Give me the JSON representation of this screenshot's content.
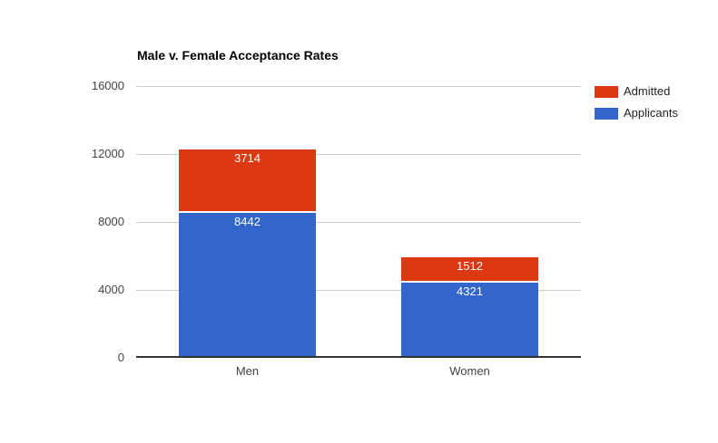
{
  "title": "Male v. Female Acceptance Rates",
  "chart_data": {
    "type": "bar",
    "stacked": true,
    "title": "Male v. Female Acceptance Rates",
    "categories": [
      "Men",
      "Women"
    ],
    "series": [
      {
        "name": "Admitted",
        "color": "#dc3912",
        "values": [
          3714,
          1512
        ]
      },
      {
        "name": "Applicants",
        "color": "#3366cc",
        "values": [
          8442,
          4321
        ]
      }
    ],
    "stack_order_bottom_to_top": [
      "Applicants",
      "Admitted"
    ],
    "bar_value_labels": true,
    "bar_label_color": "#ffffff",
    "xlabel": "",
    "ylabel": "",
    "ylim": [
      0,
      16000
    ],
    "yticks": [
      0,
      4000,
      8000,
      12000,
      16000
    ],
    "grid": true,
    "legend_position": "right"
  },
  "colors": {
    "background": "#ffffff",
    "title_text": "#000000",
    "axis_label_text": "#444444",
    "legend_text": "#222222",
    "gridline": "#cccccc",
    "baseline": "#333333",
    "admitted": "#dc3912",
    "applicants": "#3366cc"
  }
}
